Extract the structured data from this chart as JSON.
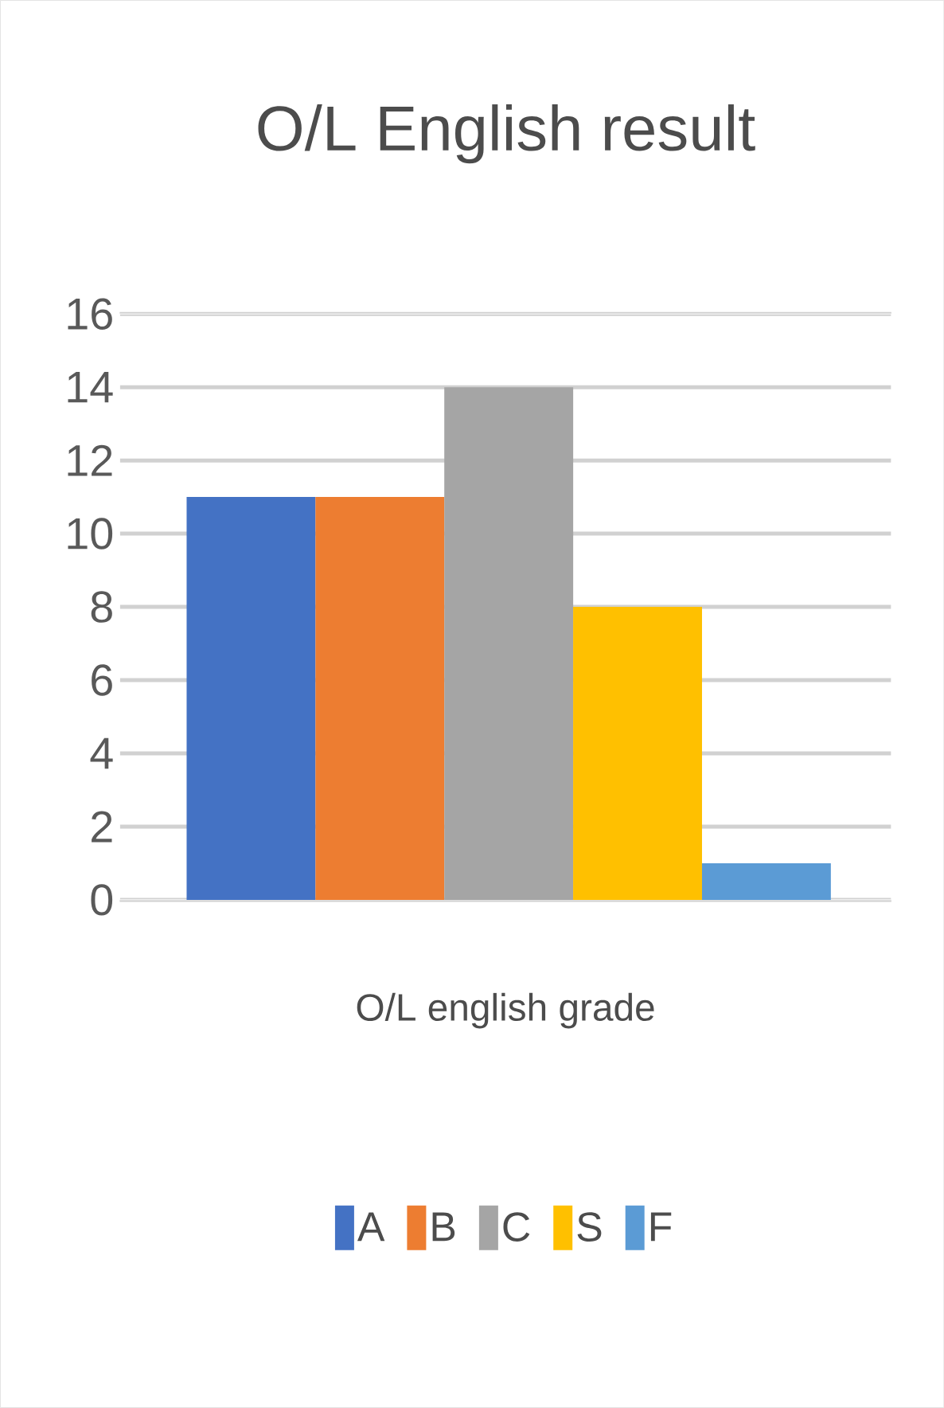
{
  "chart_data": {
    "type": "bar",
    "title": "O/L English result",
    "xlabel": "O/L english grade",
    "categories": [
      null,
      null,
      null,
      null,
      null
    ],
    "series": [
      {
        "name": "A",
        "color": "#4472c4",
        "values": [
          11,
          null,
          null,
          null,
          null
        ]
      },
      {
        "name": "B",
        "color": "#ed7d31",
        "values": [
          null,
          11,
          null,
          null,
          null
        ]
      },
      {
        "name": "C",
        "color": "#a5a5a5",
        "values": [
          null,
          null,
          14,
          null,
          null
        ]
      },
      {
        "name": "S",
        "color": "#ffc000",
        "values": [
          null,
          null,
          null,
          8,
          null
        ]
      },
      {
        "name": "F",
        "color": "#5b9bd5",
        "values": [
          null,
          null,
          null,
          null,
          1
        ]
      }
    ],
    "ylim": [
      0,
      16
    ],
    "yticks": [
      0,
      2,
      4,
      6,
      8,
      10,
      12,
      14,
      16
    ],
    "grid": "y",
    "legend": "bottom"
  }
}
